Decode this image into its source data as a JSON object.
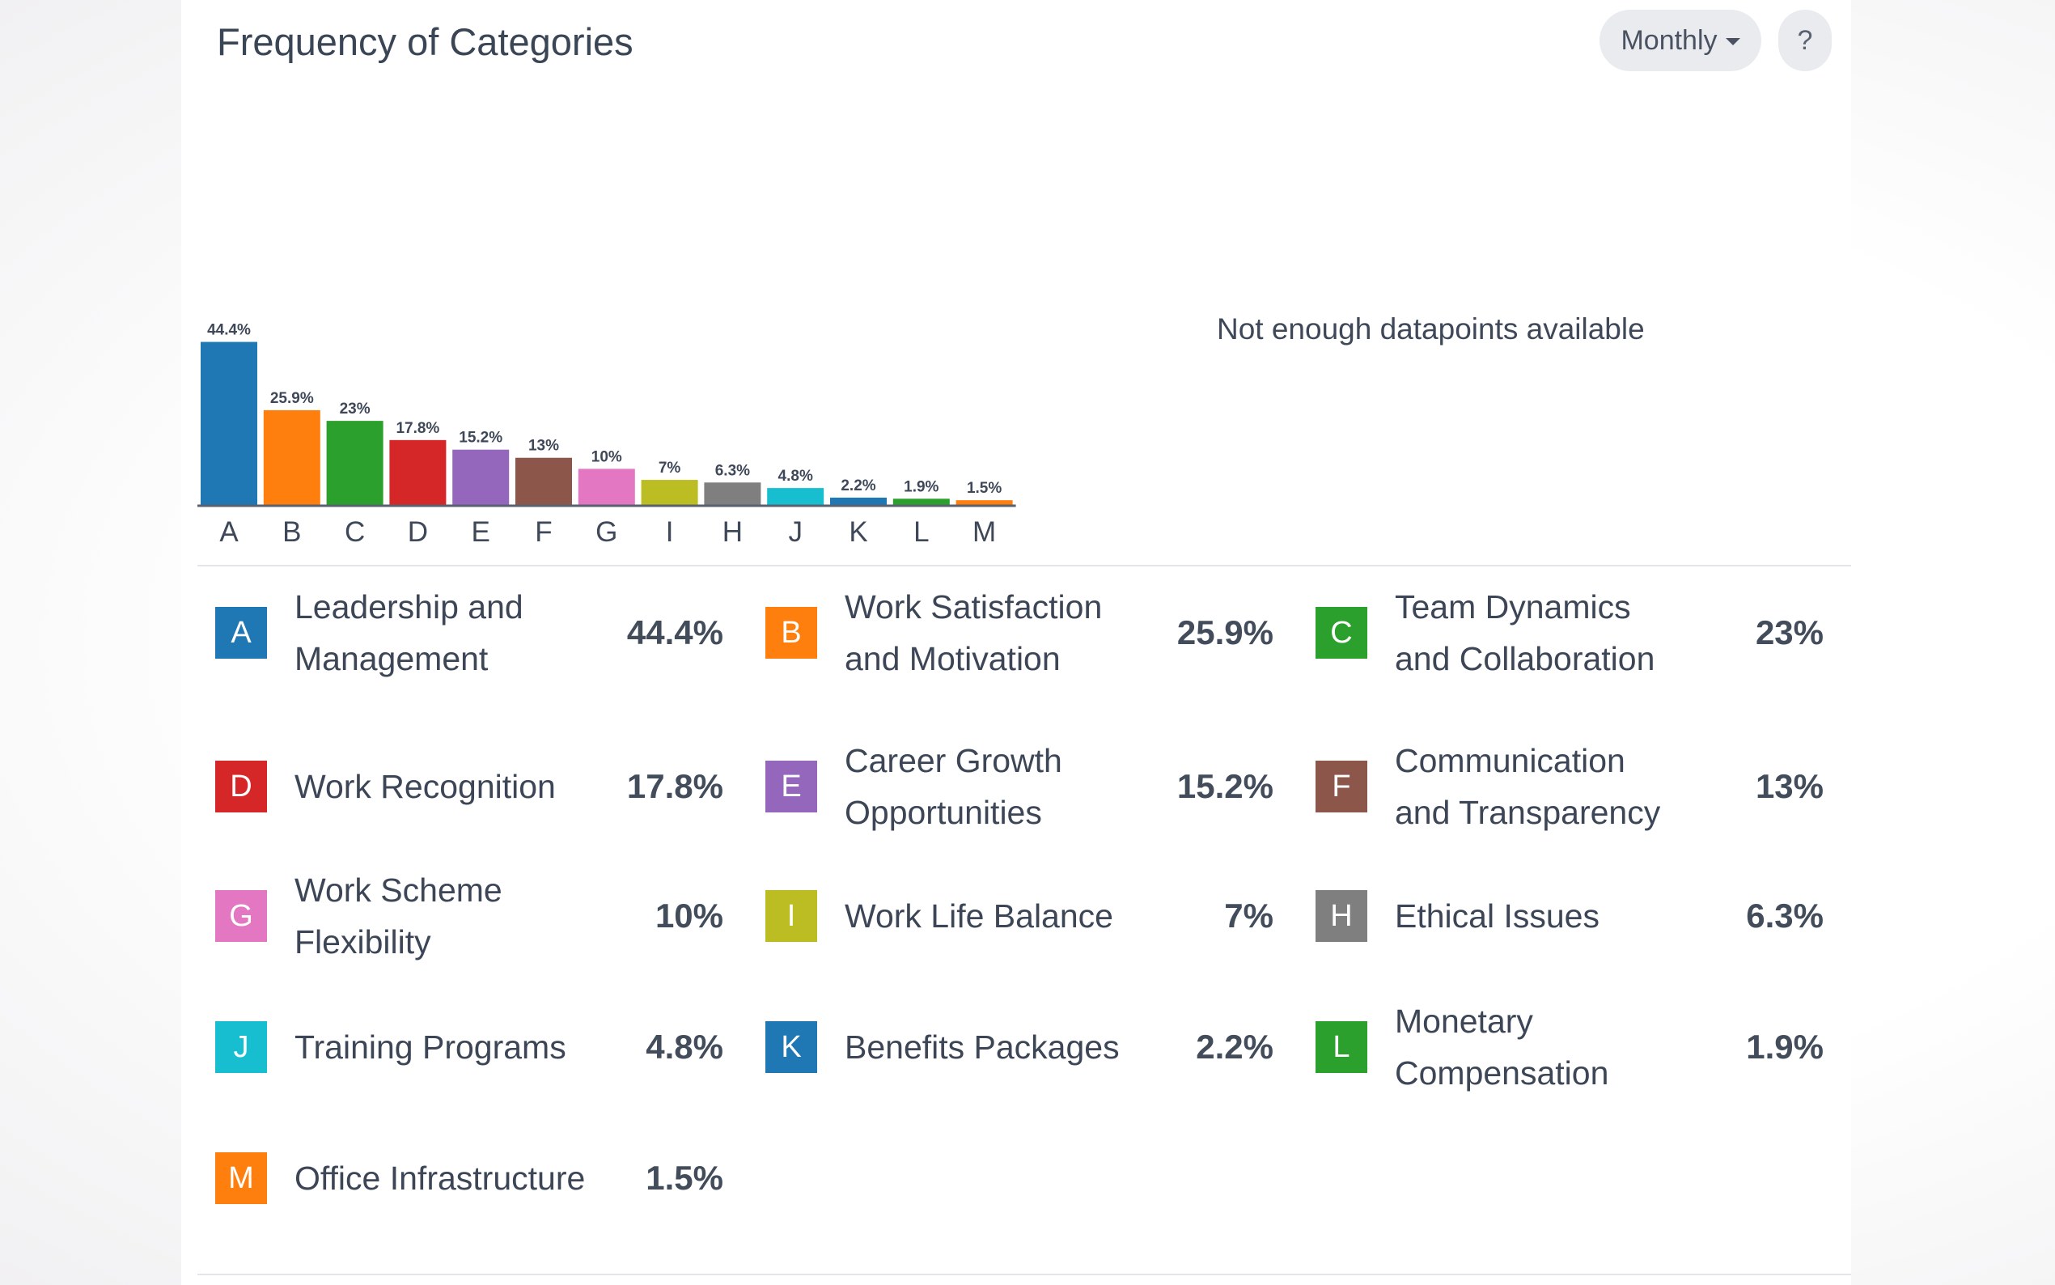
{
  "header": {
    "title": "Frequency of Categories",
    "period_label": "Monthly",
    "help_label": "?"
  },
  "secondary_panel": {
    "message": "Not enough datapoints available"
  },
  "chart_data": {
    "type": "bar",
    "categories": [
      "A",
      "B",
      "C",
      "D",
      "E",
      "F",
      "G",
      "I",
      "H",
      "J",
      "K",
      "L",
      "M"
    ],
    "values": [
      44.4,
      25.9,
      23,
      17.8,
      15.2,
      13,
      10,
      7,
      6.3,
      4.8,
      2.2,
      1.9,
      1.5
    ],
    "data_labels": [
      "44.4%",
      "25.9%",
      "23%",
      "17.8%",
      "15.2%",
      "13%",
      "10%",
      "7%",
      "6.3%",
      "4.8%",
      "2.2%",
      "1.9%",
      "1.5%"
    ],
    "colors": [
      "#1f77b4",
      "#ff7f0e",
      "#2ca02c",
      "#d62728",
      "#9467bd",
      "#8c564b",
      "#e377c2",
      "#bcbd22",
      "#7f7f7f",
      "#17becf",
      "#1f77b4",
      "#2ca02c",
      "#ff7f0e"
    ],
    "title": "",
    "xlabel": "",
    "ylabel": "",
    "grid": false,
    "legend": "below"
  },
  "legend": {
    "items": [
      {
        "letter": "A",
        "name": "Leadership and Management",
        "value": "44.4%",
        "color": "#1f77b4"
      },
      {
        "letter": "B",
        "name": "Work Satisfaction and Motivation",
        "value": "25.9%",
        "color": "#ff7f0e"
      },
      {
        "letter": "C",
        "name": "Team Dynamics and Collaboration",
        "value": "23%",
        "color": "#2ca02c"
      },
      {
        "letter": "D",
        "name": "Work Recognition",
        "value": "17.8%",
        "color": "#d62728"
      },
      {
        "letter": "E",
        "name": "Career Growth Opportunities",
        "value": "15.2%",
        "color": "#9467bd"
      },
      {
        "letter": "F",
        "name": "Communication and Transparency",
        "value": "13%",
        "color": "#8c564b"
      },
      {
        "letter": "G",
        "name": "Work Scheme Flexibility",
        "value": "10%",
        "color": "#e377c2"
      },
      {
        "letter": "I",
        "name": "Work Life Balance",
        "value": "7%",
        "color": "#bcbd22"
      },
      {
        "letter": "H",
        "name": "Ethical Issues",
        "value": "6.3%",
        "color": "#7f7f7f"
      },
      {
        "letter": "J",
        "name": "Training Programs",
        "value": "4.8%",
        "color": "#17becf"
      },
      {
        "letter": "K",
        "name": "Benefits Packages",
        "value": "2.2%",
        "color": "#1f77b4"
      },
      {
        "letter": "L",
        "name": "Monetary Compensation",
        "value": "1.9%",
        "color": "#2ca02c"
      },
      {
        "letter": "M",
        "name": "Office Infrastructure",
        "value": "1.5%",
        "color": "#ff7f0e"
      }
    ]
  }
}
